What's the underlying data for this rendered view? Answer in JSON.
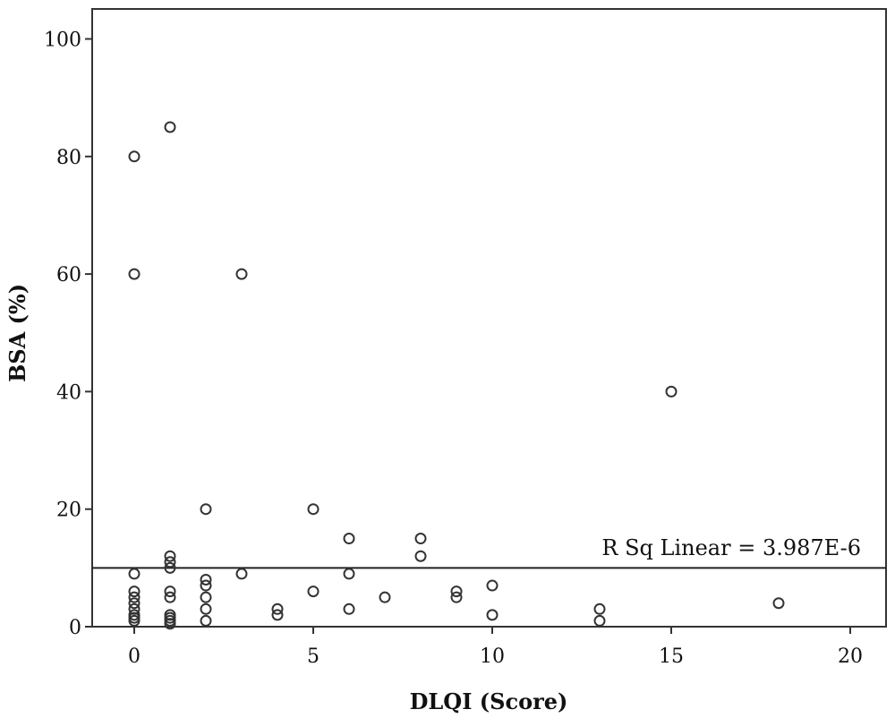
{
  "chart_data": {
    "type": "scatter",
    "xlabel": "DLQI (Score)",
    "ylabel": "BSA (%)",
    "xlim": [
      -1,
      21
    ],
    "ylim": [
      0,
      105
    ],
    "xticks": [
      0,
      5,
      10,
      15,
      20
    ],
    "yticks": [
      0,
      20,
      40,
      60,
      80,
      100
    ],
    "grid": false,
    "points": [
      {
        "x": 0,
        "y": 80
      },
      {
        "x": 0,
        "y": 60
      },
      {
        "x": 0,
        "y": 9
      },
      {
        "x": 0,
        "y": 6
      },
      {
        "x": 0,
        "y": 5
      },
      {
        "x": 0,
        "y": 4
      },
      {
        "x": 0,
        "y": 3
      },
      {
        "x": 0,
        "y": 2
      },
      {
        "x": 0,
        "y": 1.5
      },
      {
        "x": 0,
        "y": 1
      },
      {
        "x": 1,
        "y": 85
      },
      {
        "x": 1,
        "y": 12
      },
      {
        "x": 1,
        "y": 11
      },
      {
        "x": 1,
        "y": 10
      },
      {
        "x": 1,
        "y": 6
      },
      {
        "x": 1,
        "y": 5
      },
      {
        "x": 1,
        "y": 2
      },
      {
        "x": 1,
        "y": 1.5
      },
      {
        "x": 1,
        "y": 1
      },
      {
        "x": 1,
        "y": 0.5
      },
      {
        "x": 2,
        "y": 20
      },
      {
        "x": 2,
        "y": 8
      },
      {
        "x": 2,
        "y": 7
      },
      {
        "x": 2,
        "y": 5
      },
      {
        "x": 2,
        "y": 3
      },
      {
        "x": 2,
        "y": 1
      },
      {
        "x": 3,
        "y": 60
      },
      {
        "x": 3,
        "y": 9
      },
      {
        "x": 4,
        "y": 3
      },
      {
        "x": 4,
        "y": 2
      },
      {
        "x": 5,
        "y": 20
      },
      {
        "x": 5,
        "y": 6
      },
      {
        "x": 6,
        "y": 15
      },
      {
        "x": 6,
        "y": 9
      },
      {
        "x": 6,
        "y": 3
      },
      {
        "x": 7,
        "y": 5
      },
      {
        "x": 8,
        "y": 15
      },
      {
        "x": 8,
        "y": 12
      },
      {
        "x": 9,
        "y": 6
      },
      {
        "x": 9,
        "y": 5
      },
      {
        "x": 10,
        "y": 7
      },
      {
        "x": 10,
        "y": 2
      },
      {
        "x": 13,
        "y": 3
      },
      {
        "x": 13,
        "y": 1
      },
      {
        "x": 15,
        "y": 40
      },
      {
        "x": 18,
        "y": 4
      }
    ],
    "fit_line": {
      "y": 10
    },
    "annotation": "R Sq Linear = 3.987E-6"
  }
}
